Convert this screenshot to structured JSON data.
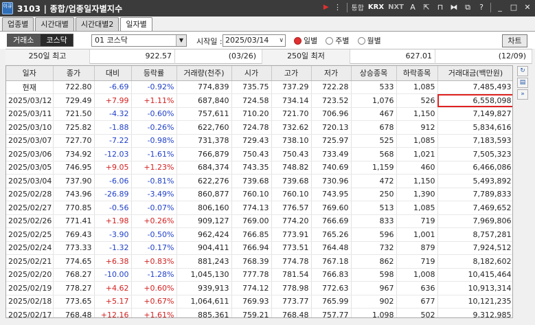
{
  "window": {
    "app_icon": "이큐",
    "screen_no": "3103",
    "title": "종합/업종일자별지수",
    "toolbar": {
      "combined_label": "통합",
      "krx_label": "KRX",
      "nxt_label": "NXT",
      "font_label": "A",
      "help_label": "?"
    }
  },
  "tabs": [
    {
      "label": "업종별"
    },
    {
      "label": "시간대별"
    },
    {
      "label": "시간대별2"
    },
    {
      "label": "일자별"
    }
  ],
  "controls": {
    "exchange_btn": "거래소",
    "kosdaq_btn": "코스닥",
    "market_select": "01  코스닥",
    "start_label": "시작일 :",
    "start_date": "2025/03/14",
    "radio_daily": "일별",
    "radio_weekly": "주별",
    "radio_monthly": "월별",
    "chart_btn": "차트"
  },
  "summary": {
    "high_label": "250일 최고",
    "high_value": "922.57",
    "high_date": "(03/26)",
    "low_label": "250일 최저",
    "low_value": "627.01",
    "low_date": "(12/09)"
  },
  "table": {
    "headers": [
      "일자",
      "종가",
      "대비",
      "등락률",
      "거래량(천주)",
      "시가",
      "고가",
      "저가",
      "상승종목",
      "하락종목",
      "거래대금(백만원)"
    ],
    "rows": [
      {
        "date": "현재",
        "close": "722.80",
        "change": "-6.69",
        "rate": "-0.92%",
        "volume": "774,839",
        "open": "735.75",
        "high": "737.29",
        "low": "722.28",
        "adv": "533",
        "dec": "1,085",
        "amount": "7,485,493"
      },
      {
        "date": "2025/03/12",
        "close": "729.49",
        "change": "+7.99",
        "rate": "+1.11%",
        "volume": "687,840",
        "open": "724.58",
        "high": "734.14",
        "low": "723.52",
        "adv": "1,076",
        "dec": "526",
        "amount": "6,558,098"
      },
      {
        "date": "2025/03/11",
        "close": "721.50",
        "change": "-4.32",
        "rate": "-0.60%",
        "volume": "757,611",
        "open": "710.20",
        "high": "721.70",
        "low": "706.96",
        "adv": "467",
        "dec": "1,150",
        "amount": "7,149,827"
      },
      {
        "date": "2025/03/10",
        "close": "725.82",
        "change": "-1.88",
        "rate": "-0.26%",
        "volume": "622,760",
        "open": "724.78",
        "high": "732.62",
        "low": "720.13",
        "adv": "678",
        "dec": "912",
        "amount": "5,834,616"
      },
      {
        "date": "2025/03/07",
        "close": "727.70",
        "change": "-7.22",
        "rate": "-0.98%",
        "volume": "731,378",
        "open": "729.43",
        "high": "738.10",
        "low": "725.97",
        "adv": "525",
        "dec": "1,085",
        "amount": "7,183,593"
      },
      {
        "date": "2025/03/06",
        "close": "734.92",
        "change": "-12.03",
        "rate": "-1.61%",
        "volume": "766,879",
        "open": "750.43",
        "high": "750.43",
        "low": "733.49",
        "adv": "568",
        "dec": "1,021",
        "amount": "7,505,323"
      },
      {
        "date": "2025/03/05",
        "close": "746.95",
        "change": "+9.05",
        "rate": "+1.23%",
        "volume": "684,374",
        "open": "743.35",
        "high": "748.82",
        "low": "740.69",
        "adv": "1,159",
        "dec": "460",
        "amount": "6,466,086"
      },
      {
        "date": "2025/03/04",
        "close": "737.90",
        "change": "-6.06",
        "rate": "-0.81%",
        "volume": "622,276",
        "open": "739.68",
        "high": "739.68",
        "low": "730.96",
        "adv": "472",
        "dec": "1,150",
        "amount": "5,493,892"
      },
      {
        "date": "2025/02/28",
        "close": "743.96",
        "change": "-26.89",
        "rate": "-3.49%",
        "volume": "860,877",
        "open": "760.10",
        "high": "760.10",
        "low": "743.95",
        "adv": "250",
        "dec": "1,390",
        "amount": "7,789,833"
      },
      {
        "date": "2025/02/27",
        "close": "770.85",
        "change": "-0.56",
        "rate": "-0.07%",
        "volume": "806,160",
        "open": "774.13",
        "high": "776.57",
        "low": "769.60",
        "adv": "513",
        "dec": "1,085",
        "amount": "7,469,652"
      },
      {
        "date": "2025/02/26",
        "close": "771.41",
        "change": "+1.98",
        "rate": "+0.26%",
        "volume": "909,127",
        "open": "769.00",
        "high": "774.20",
        "low": "766.69",
        "adv": "833",
        "dec": "719",
        "amount": "7,969,806"
      },
      {
        "date": "2025/02/25",
        "close": "769.43",
        "change": "-3.90",
        "rate": "-0.50%",
        "volume": "962,424",
        "open": "766.85",
        "high": "773.91",
        "low": "765.26",
        "adv": "596",
        "dec": "1,001",
        "amount": "8,757,281"
      },
      {
        "date": "2025/02/24",
        "close": "773.33",
        "change": "-1.32",
        "rate": "-0.17%",
        "volume": "904,411",
        "open": "766.94",
        "high": "773.51",
        "low": "764.48",
        "adv": "732",
        "dec": "879",
        "amount": "7,924,512"
      },
      {
        "date": "2025/02/21",
        "close": "774.65",
        "change": "+6.38",
        "rate": "+0.83%",
        "volume": "881,243",
        "open": "768.39",
        "high": "774.78",
        "low": "767.18",
        "adv": "862",
        "dec": "719",
        "amount": "8,182,602"
      },
      {
        "date": "2025/02/20",
        "close": "768.27",
        "change": "-10.00",
        "rate": "-1.28%",
        "volume": "1,045,130",
        "open": "777.78",
        "high": "781.54",
        "low": "766.83",
        "adv": "598",
        "dec": "1,008",
        "amount": "10,415,464"
      },
      {
        "date": "2025/02/19",
        "close": "778.27",
        "change": "+4.62",
        "rate": "+0.60%",
        "volume": "939,913",
        "open": "774.12",
        "high": "778.98",
        "low": "772.63",
        "adv": "967",
        "dec": "636",
        "amount": "10,913,314"
      },
      {
        "date": "2025/02/18",
        "close": "773.65",
        "change": "+5.17",
        "rate": "+0.67%",
        "volume": "1,064,611",
        "open": "769.93",
        "high": "773.77",
        "low": "765.99",
        "adv": "902",
        "dec": "677",
        "amount": "10,121,235"
      },
      {
        "date": "2025/02/17",
        "close": "768.48",
        "change": "+12.16",
        "rate": "+1.61%",
        "volume": "885,361",
        "open": "759.21",
        "high": "768.48",
        "low": "757.77",
        "adv": "1,098",
        "dec": "502",
        "amount": "9,312,985"
      }
    ]
  },
  "colors": {
    "up": "#d42020",
    "down": "#2040c8",
    "highlight_border": "#e02020"
  }
}
